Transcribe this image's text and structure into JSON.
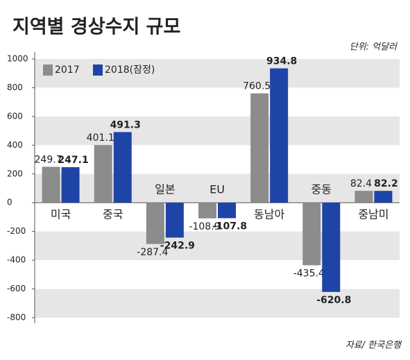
{
  "chart_data": {
    "type": "bar",
    "title": "지역별 경상수지 규모",
    "subtitle": "단위: 억달러",
    "source": "자료/ 한국은행",
    "categories": [
      "미국",
      "중국",
      "일본",
      "EU",
      "동남아",
      "중동",
      "중남미"
    ],
    "series": [
      {
        "name": "2017",
        "color": "#8c8c8c",
        "values": [
          249.7,
          401.1,
          -287.4,
          -108.9,
          760.5,
          -435.4,
          82.4
        ]
      },
      {
        "name": "2018(잠정)",
        "color": "#1f44a8",
        "values": [
          247.1,
          491.3,
          -242.9,
          -107.8,
          934.8,
          -620.8,
          82.2
        ]
      }
    ],
    "ylim": [
      -800,
      1000
    ],
    "yticks": [
      -800,
      -600,
      -400,
      -200,
      0,
      200,
      400,
      600,
      800,
      1000
    ],
    "grid": "bands",
    "legend": "top-left"
  }
}
